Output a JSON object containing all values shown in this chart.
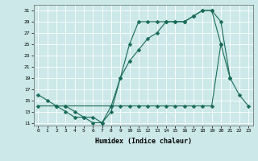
{
  "xlabel": "Humidex (Indice chaleur)",
  "bg_color": "#cce8e8",
  "grid_color": "#ffffff",
  "line_color": "#1a6b5a",
  "xlim": [
    -0.5,
    23.5
  ],
  "ylim": [
    10.5,
    32
  ],
  "xticks": [
    0,
    1,
    2,
    3,
    4,
    5,
    6,
    7,
    8,
    9,
    10,
    11,
    12,
    13,
    14,
    15,
    16,
    17,
    18,
    19,
    20,
    21,
    22,
    23
  ],
  "yticks": [
    11,
    13,
    15,
    17,
    19,
    21,
    23,
    25,
    27,
    29,
    31
  ],
  "line1_x": [
    0,
    1,
    2,
    3,
    4,
    5,
    6,
    7,
    8,
    9,
    10,
    11,
    12,
    13,
    14,
    15,
    16,
    17,
    18,
    19,
    20,
    21
  ],
  "line1_y": [
    16,
    15,
    14,
    13,
    12,
    12,
    11,
    11,
    13,
    19,
    25,
    29,
    29,
    29,
    29,
    29,
    29,
    30,
    31,
    31,
    29,
    19
  ],
  "line2_x": [
    2,
    3,
    4,
    5,
    6,
    7,
    8,
    9,
    10,
    11,
    12,
    13,
    14,
    15,
    16,
    17,
    18,
    19,
    20
  ],
  "line2_y": [
    14,
    14,
    13,
    12,
    12,
    11,
    14,
    19,
    22,
    24,
    26,
    27,
    29,
    29,
    29,
    30,
    31,
    31,
    25
  ],
  "line3_x": [
    0,
    2,
    3,
    8,
    9,
    10,
    11,
    12,
    13,
    14,
    15,
    16,
    17,
    18,
    19,
    20,
    21,
    22,
    23
  ],
  "line3_y": [
    14,
    14,
    14,
    14,
    14,
    14,
    14,
    14,
    14,
    14,
    14,
    14,
    14,
    14,
    14,
    25,
    19,
    16,
    14
  ]
}
